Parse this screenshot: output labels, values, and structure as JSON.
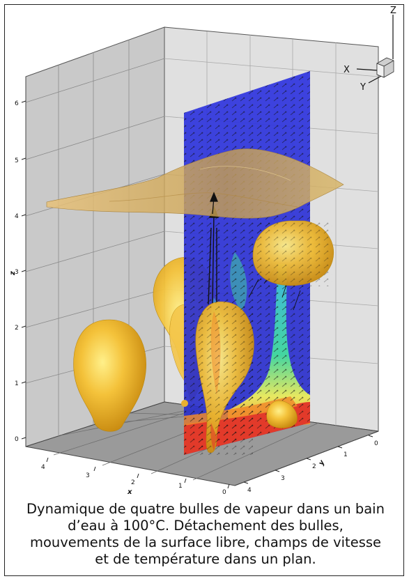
{
  "figure": {
    "z_axis": {
      "label": "z",
      "ticks": [
        "0",
        "1",
        "2",
        "3",
        "4",
        "5",
        "6"
      ]
    },
    "x_axis": {
      "label": "x",
      "ticks": [
        "4",
        "3",
        "2",
        "1",
        "0"
      ]
    },
    "y_axis": {
      "label": "y",
      "ticks": [
        "0",
        "1",
        "2",
        "3",
        "4"
      ]
    },
    "triad": {
      "x": "X",
      "y": "Y",
      "z": "Z"
    },
    "colors": {
      "bubble": "#f2b82a",
      "plane": "#2a33d8",
      "surface": "#d2ad5e",
      "hot": "#e23a2a",
      "warm": "#f08a2a",
      "mid": "#3fd0a0",
      "vector": "#111111"
    }
  },
  "caption": {
    "lines": [
      "Dynamique de quatre bulles de vapeur dans un bain",
      "d’eau à 100°C. Détachement des bulles,",
      "mouvements de la surface libre, champs de vitesse",
      "et de température dans un plan."
    ]
  }
}
